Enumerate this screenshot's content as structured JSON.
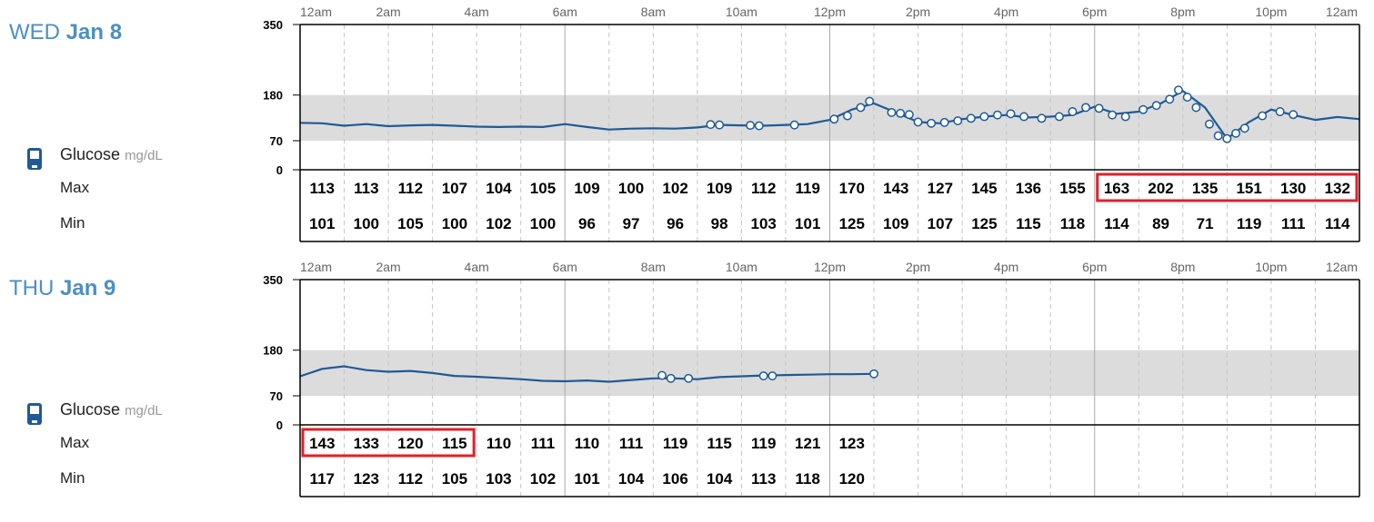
{
  "legend": {
    "name": "Glucose",
    "unit": "mg/dL",
    "max_label": "Max",
    "min_label": "Min",
    "icon": "glucose-meter-icon"
  },
  "colors": {
    "line": "#1f5a96",
    "range_band": "#dcdcdc",
    "highlight": "#e0202a",
    "title": "#4a90c4"
  },
  "days": [
    {
      "weekday": "WED",
      "date": "Jan 8",
      "chart_data": {
        "type": "line",
        "title": "WED Jan 8",
        "x_ticks": [
          "12am",
          "2am",
          "4am",
          "6am",
          "8am",
          "10am",
          "12pm",
          "2pm",
          "4pm",
          "6pm",
          "8pm",
          "10pm",
          "12am"
        ],
        "x_range_hours": [
          0,
          24
        ],
        "y_ticks": [
          0,
          70,
          180,
          350
        ],
        "ylim": [
          0,
          350
        ],
        "target_range": [
          70,
          180
        ],
        "series": [
          {
            "points": [
              [
                0,
                113
              ],
              [
                0.5,
                112
              ],
              [
                1,
                106
              ],
              [
                1.5,
                110
              ],
              [
                2,
                105
              ],
              [
                2.5,
                107
              ],
              [
                3,
                108
              ],
              [
                3.5,
                106
              ],
              [
                4,
                104
              ],
              [
                4.5,
                103
              ],
              [
                5,
                104
              ],
              [
                5.5,
                103
              ],
              [
                6,
                110
              ],
              [
                6.5,
                103
              ],
              [
                7,
                97
              ],
              [
                7.5,
                99
              ],
              [
                8,
                100
              ],
              [
                8.5,
                99
              ],
              [
                9,
                102
              ],
              [
                9.5,
                108
              ],
              [
                10,
                107
              ],
              [
                10.5,
                106
              ],
              [
                11,
                108
              ],
              [
                11.5,
                110
              ],
              [
                12,
                120
              ],
              [
                12.5,
                145
              ],
              [
                13,
                160
              ],
              [
                13.5,
                138
              ],
              [
                14,
                115
              ],
              [
                14.5,
                112
              ],
              [
                15,
                122
              ],
              [
                15.5,
                128
              ],
              [
                16,
                132
              ],
              [
                16.5,
                126
              ],
              [
                17,
                128
              ],
              [
                17.5,
                132
              ],
              [
                18,
                152
              ],
              [
                18.5,
                135
              ],
              [
                19,
                140
              ],
              [
                19.5,
                160
              ],
              [
                20,
                190
              ],
              [
                20.5,
                150
              ],
              [
                21,
                75
              ],
              [
                21.5,
                115
              ],
              [
                22,
                145
              ],
              [
                22.5,
                132
              ],
              [
                23,
                120
              ],
              [
                23.5,
                127
              ],
              [
                24,
                122
              ]
            ],
            "markers": [
              [
                9.3,
                109
              ],
              [
                9.5,
                108
              ],
              [
                10.2,
                107
              ],
              [
                10.4,
                106
              ],
              [
                11.2,
                108
              ],
              [
                12.1,
                122
              ],
              [
                12.4,
                130
              ],
              [
                12.7,
                150
              ],
              [
                12.9,
                165
              ],
              [
                13.4,
                138
              ],
              [
                13.6,
                136
              ],
              [
                13.8,
                133
              ],
              [
                14,
                115
              ],
              [
                14.3,
                112
              ],
              [
                14.6,
                114
              ],
              [
                14.9,
                118
              ],
              [
                15.2,
                124
              ],
              [
                15.5,
                128
              ],
              [
                15.8,
                132
              ],
              [
                16.1,
                135
              ],
              [
                16.4,
                128
              ],
              [
                16.8,
                124
              ],
              [
                17.2,
                128
              ],
              [
                17.5,
                140
              ],
              [
                17.8,
                150
              ],
              [
                18.1,
                148
              ],
              [
                18.4,
                132
              ],
              [
                18.7,
                128
              ],
              [
                19.1,
                145
              ],
              [
                19.4,
                155
              ],
              [
                19.7,
                170
              ],
              [
                19.9,
                192
              ],
              [
                20.1,
                175
              ],
              [
                20.3,
                150
              ],
              [
                20.6,
                110
              ],
              [
                20.8,
                82
              ],
              [
                21,
                75
              ],
              [
                21.2,
                88
              ],
              [
                21.4,
                100
              ],
              [
                21.8,
                130
              ],
              [
                22.2,
                140
              ],
              [
                22.5,
                133
              ]
            ]
          }
        ],
        "hourly_max": [
          113,
          113,
          112,
          107,
          104,
          105,
          109,
          100,
          102,
          109,
          112,
          119,
          170,
          143,
          127,
          145,
          136,
          155,
          163,
          202,
          135,
          151,
          130,
          132
        ],
        "hourly_min": [
          101,
          100,
          105,
          100,
          102,
          100,
          96,
          97,
          96,
          98,
          103,
          101,
          125,
          109,
          107,
          125,
          115,
          118,
          114,
          89,
          71,
          119,
          111,
          114
        ],
        "highlight_columns": [
          18,
          23
        ]
      }
    },
    {
      "weekday": "THU",
      "date": "Jan 9",
      "chart_data": {
        "type": "line",
        "title": "THU Jan 9",
        "x_ticks": [
          "12am",
          "2am",
          "4am",
          "6am",
          "8am",
          "10am",
          "12pm",
          "2pm",
          "4pm",
          "6pm",
          "8pm",
          "10pm",
          "12am"
        ],
        "x_range_hours": [
          0,
          24
        ],
        "y_ticks": [
          0,
          70,
          180,
          350
        ],
        "ylim": [
          0,
          350
        ],
        "target_range": [
          70,
          180
        ],
        "series": [
          {
            "points": [
              [
                0,
                117
              ],
              [
                0.5,
                135
              ],
              [
                1,
                141
              ],
              [
                1.5,
                132
              ],
              [
                2,
                128
              ],
              [
                2.5,
                130
              ],
              [
                3,
                125
              ],
              [
                3.5,
                118
              ],
              [
                4,
                116
              ],
              [
                4.5,
                113
              ],
              [
                5,
                110
              ],
              [
                5.5,
                106
              ],
              [
                6,
                105
              ],
              [
                6.5,
                107
              ],
              [
                7,
                104
              ],
              [
                7.5,
                108
              ],
              [
                8,
                112
              ],
              [
                8.5,
                112
              ],
              [
                9,
                110
              ],
              [
                9.5,
                115
              ],
              [
                10,
                117
              ],
              [
                10.5,
                119
              ],
              [
                11,
                120
              ],
              [
                11.5,
                121
              ],
              [
                12,
                122
              ],
              [
                12.5,
                122
              ],
              [
                13,
                123
              ]
            ],
            "markers": [
              [
                8.2,
                119
              ],
              [
                8.4,
                112
              ],
              [
                8.8,
                112
              ],
              [
                10.5,
                118
              ],
              [
                10.7,
                118
              ],
              [
                13,
                123
              ]
            ]
          }
        ],
        "hourly_max": [
          143,
          133,
          120,
          115,
          110,
          111,
          110,
          111,
          119,
          115,
          119,
          121,
          123
        ],
        "hourly_min": [
          117,
          123,
          112,
          105,
          103,
          102,
          101,
          104,
          106,
          104,
          113,
          118,
          120
        ],
        "highlight_columns": [
          0,
          3
        ]
      }
    }
  ]
}
